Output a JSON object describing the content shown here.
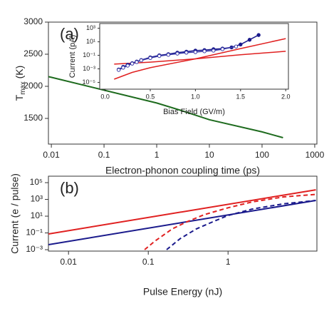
{
  "chart_data": [
    {
      "type": "line",
      "label": "(a)",
      "xscale": "log",
      "yscale": "linear",
      "xlabel": "Electron-phonon coupling time (ps)",
      "ylabel": {
        "text": "T",
        "subscript": "max",
        "suffix": " (K)"
      },
      "xlim": [
        0.0088,
        1100
      ],
      "ylim": [
        1100,
        3000
      ],
      "xticks": [
        0.01,
        0.1,
        1,
        10,
        100,
        1000
      ],
      "yticks": [
        1500,
        2000,
        2500,
        3000
      ],
      "series": [
        {
          "color": "#1e6b1e",
          "x": [
            0.0088,
            0.01,
            0.1,
            1,
            3,
            10,
            100,
            250
          ],
          "values": [
            2150,
            2140,
            1940,
            1740,
            1620,
            1480,
            1290,
            1200
          ]
        }
      ]
    },
    {
      "type": "line",
      "xscale": "linear",
      "yscale": "log",
      "xlabel": "Bias Field (GV/m)",
      "ylabel": "Current (pA)",
      "xlim": [
        -0.06,
        2.03
      ],
      "ylim": [
        1e-06,
        5000
      ],
      "xticks": [
        {
          "value": 0,
          "label": "0.0"
        },
        {
          "value": 0.5,
          "label": "0.5"
        },
        {
          "value": 1,
          "label": "1.0"
        },
        {
          "value": 1.5,
          "label": "1.5"
        },
        {
          "value": 2,
          "label": "2.0"
        }
      ],
      "yticks": [
        {
          "value": 1e-05,
          "label": "10⁻⁵"
        },
        {
          "value": 0.001,
          "label": "10⁻³"
        },
        {
          "value": 0.1,
          "label": "10⁻¹"
        },
        {
          "value": 10,
          "label": "10¹"
        },
        {
          "value": 1000,
          "label": "10³"
        }
      ],
      "series": [
        {
          "color": "#e02020",
          "x": [
            0.1,
            0.3,
            0.5,
            1.0,
            1.5,
            2.0
          ],
          "values": [
            3e-05,
            0.0003,
            0.0015,
            0.03,
            1,
            30
          ]
        },
        {
          "color": "#e02020",
          "x": [
            0.1,
            0.5,
            1.0,
            1.5,
            2.0
          ],
          "values": [
            0.005,
            0.01,
            0.03,
            0.12,
            0.4
          ]
        },
        {
          "color": "#1a1a8c",
          "marker": "filled",
          "x": [
            0.15,
            0.2,
            0.25,
            0.3,
            0.35,
            0.4,
            0.5,
            0.6,
            0.7,
            0.8,
            0.9,
            1.0,
            1.1,
            1.2,
            1.3,
            1.4,
            1.5,
            1.6,
            1.7
          ],
          "values": [
            0.0008,
            0.002,
            0.004,
            0.007,
            0.012,
            0.02,
            0.05,
            0.1,
            0.15,
            0.25,
            0.35,
            0.5,
            0.6,
            0.8,
            1,
            1.5,
            4,
            20,
            100
          ]
        },
        {
          "color": "#3a3aa8",
          "marker": "open",
          "x": [
            0.15,
            0.2,
            0.25,
            0.3,
            0.35,
            0.4,
            0.5,
            0.6,
            0.7,
            0.8,
            0.9,
            1.0,
            1.1,
            1.2,
            1.3,
            1.45
          ],
          "values": [
            0.0007,
            0.0015,
            0.003,
            0.006,
            0.01,
            0.018,
            0.04,
            0.08,
            0.12,
            0.18,
            0.25,
            0.3,
            0.4,
            0.5,
            0.8,
            2
          ]
        }
      ]
    },
    {
      "type": "line",
      "label": "(b)",
      "xscale": "log",
      "yscale": "log",
      "xlabel": "Pulse Energy (nJ)",
      "ylabel": "Current (e / pulse)",
      "xlim": [
        0.0056,
        13
      ],
      "ylim": [
        0.00068,
        590000
      ],
      "xticks": [
        0.01,
        0.1,
        1
      ],
      "yticks": [
        {
          "value": 0.001,
          "label": "10⁻³"
        },
        {
          "value": 0.1,
          "label": "10⁻¹"
        },
        {
          "value": 10,
          "label": "10¹"
        },
        {
          "value": 1000,
          "label": "10³"
        },
        {
          "value": 100000,
          "label": "10⁵"
        }
      ],
      "series": [
        {
          "color": "#e02020",
          "x": [
            0.0056,
            12.6
          ],
          "values": [
            0.075,
            14000
          ]
        },
        {
          "color": "#1a1a8c",
          "x": [
            0.0056,
            12.6
          ],
          "values": [
            0.004,
            750
          ]
        },
        {
          "color": "#e02020",
          "dash": true,
          "x": [
            0.09,
            0.12,
            0.2,
            0.3,
            0.5,
            1,
            2,
            5,
            12.6
          ],
          "values": [
            0.001,
            0.01,
            0.3,
            2,
            15,
            100,
            500,
            2000,
            4000
          ]
        },
        {
          "color": "#1a1a8c",
          "dash": true,
          "x": [
            0.17,
            0.25,
            0.4,
            0.7,
            1,
            2,
            5,
            12.6
          ],
          "values": [
            0.001,
            0.02,
            0.3,
            3,
            12,
            70,
            300,
            750
          ]
        }
      ]
    }
  ]
}
